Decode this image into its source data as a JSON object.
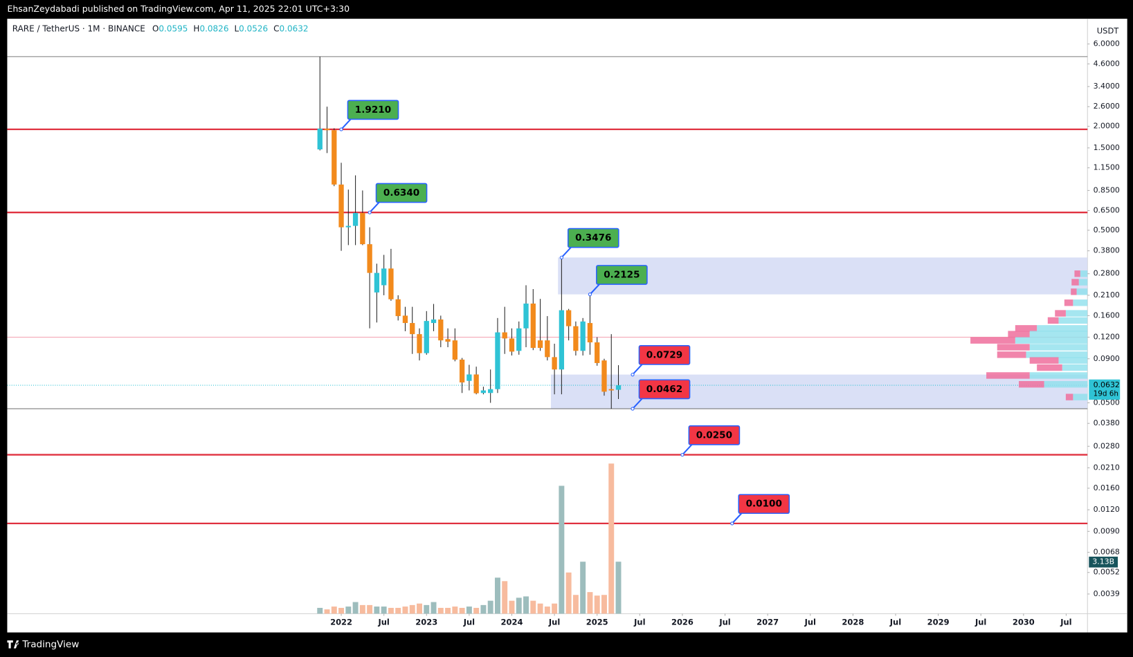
{
  "header": {
    "publisher": "EhsanZeydabadi published on TradingView.com, Apr 11, 2025 22:01 UTC+3:30"
  },
  "legend": {
    "symbol": "RARE / TetherUS · 1M · BINANCE",
    "o": "O",
    "h": "H",
    "l": "L",
    "c": "C"
  },
  "footer": {
    "brand": "TradingView"
  },
  "chart_data": {
    "type": "candlestick",
    "y_unit": "USDT",
    "log_scale": true,
    "x": [
      "2021-10",
      "2021-11",
      "2021-12",
      "2022-01",
      "2022-02",
      "2022-03",
      "2022-04",
      "2022-05",
      "2022-06",
      "2022-07",
      "2022-08",
      "2022-09",
      "2022-10",
      "2022-11",
      "2022-12",
      "2023-01",
      "2023-02",
      "2023-03",
      "2023-04",
      "2023-05",
      "2023-06",
      "2023-07",
      "2023-08",
      "2023-09",
      "2023-10",
      "2023-11",
      "2023-12",
      "2024-01",
      "2024-02",
      "2024-03",
      "2024-04",
      "2024-05",
      "2024-06",
      "2024-07",
      "2024-08",
      "2024-09",
      "2024-10",
      "2024-11",
      "2024-12",
      "2025-01",
      "2025-02",
      "2025-03",
      "2025-04"
    ],
    "open": [
      1.47,
      1.94,
      1.9,
      0.92,
      0.52,
      0.53,
      0.63,
      0.415,
      0.218,
      0.24,
      0.3,
      0.199,
      0.16,
      0.145,
      0.125,
      0.097,
      0.145,
      0.152,
      0.117,
      0.115,
      0.089,
      0.067,
      0.073,
      0.057,
      0.057,
      0.06,
      0.128,
      0.118,
      0.1,
      0.135,
      0.188,
      0.115,
      0.115,
      0.092,
      0.078,
      0.172,
      0.139,
      0.1,
      0.145,
      0.112,
      0.088,
      0.06,
      0.0595
    ],
    "high": [
      5.07,
      2.6,
      1.95,
      1.23,
      0.86,
      1.04,
      0.85,
      0.52,
      0.32,
      0.36,
      0.39,
      0.21,
      0.18,
      0.18,
      0.135,
      0.17,
      0.187,
      0.16,
      0.135,
      0.135,
      0.091,
      0.083,
      0.081,
      0.062,
      0.078,
      0.155,
      0.18,
      0.135,
      0.148,
      0.24,
      0.228,
      0.2,
      0.159,
      0.11,
      0.3476,
      0.175,
      0.148,
      0.155,
      0.2125,
      0.12,
      0.09,
      0.125,
      0.0826
    ],
    "low": [
      1.45,
      1.4,
      0.9,
      0.38,
      0.41,
      0.41,
      0.41,
      0.135,
      0.146,
      0.21,
      0.195,
      0.15,
      0.13,
      0.096,
      0.088,
      0.095,
      0.13,
      0.105,
      0.105,
      0.087,
      0.057,
      0.059,
      0.056,
      0.056,
      0.05,
      0.057,
      0.096,
      0.094,
      0.095,
      0.105,
      0.101,
      0.1,
      0.088,
      0.056,
      0.056,
      0.115,
      0.094,
      0.094,
      0.095,
      0.082,
      0.055,
      0.0462,
      0.0526
    ],
    "close": [
      1.94,
      1.9,
      0.92,
      0.52,
      0.53,
      0.63,
      0.415,
      0.283,
      0.283,
      0.3,
      0.199,
      0.159,
      0.145,
      0.125,
      0.097,
      0.149,
      0.152,
      0.115,
      0.113,
      0.089,
      0.0656,
      0.073,
      0.0568,
      0.059,
      0.06,
      0.128,
      0.118,
      0.099,
      0.135,
      0.188,
      0.104,
      0.104,
      0.092,
      0.078,
      0.172,
      0.139,
      0.1,
      0.148,
      0.112,
      0.085,
      0.058,
      0.059,
      0.0632
    ],
    "volume": [
      0.35,
      0.26,
      0.43,
      0.35,
      0.43,
      0.7,
      0.52,
      0.52,
      0.43,
      0.43,
      0.35,
      0.35,
      0.43,
      0.52,
      0.61,
      0.52,
      0.7,
      0.35,
      0.35,
      0.43,
      0.35,
      0.43,
      0.35,
      0.52,
      0.78,
      2.17,
      1.96,
      0.78,
      0.96,
      1.04,
      0.78,
      0.61,
      0.43,
      0.61,
      7.7,
      2.48,
      1.13,
      3.13,
      1.3,
      1.09,
      1.13,
      9.04,
      3.13
    ],
    "volume_label": {
      "value": 3.13,
      "label": "3.13B"
    },
    "countdown": "19d 6h",
    "up_color": "#2fc3d5",
    "down_color": "#f28a1c",
    "volume_up_color": "#9dbdbd",
    "volume_down_color": "#f7bb9e",
    "ylim": [
      0.003,
      8.4
    ],
    "yticks": [
      {
        "value": 6,
        "label": "6.0000"
      },
      {
        "value": 4.6,
        "label": "4.6000"
      },
      {
        "value": 3.4,
        "label": "3.4000"
      },
      {
        "value": 2.6,
        "label": "2.6000"
      },
      {
        "value": 2,
        "label": "2.0000"
      },
      {
        "value": 1.5,
        "label": "1.5000"
      },
      {
        "value": 1.15,
        "label": "1.1500"
      },
      {
        "value": 0.85,
        "label": "0.8500"
      },
      {
        "value": 0.65,
        "label": "0.6500"
      },
      {
        "value": 0.5,
        "label": "0.5000"
      },
      {
        "value": 0.38,
        "label": "0.3800"
      },
      {
        "value": 0.28,
        "label": "0.2800"
      },
      {
        "value": 0.21,
        "label": "0.2100"
      },
      {
        "value": 0.16,
        "label": "0.1600"
      },
      {
        "value": 0.12,
        "label": "0.1200"
      },
      {
        "value": 0.09,
        "label": "0.0900"
      },
      {
        "value": 0.05,
        "label": "0.0500"
      },
      {
        "value": 0.038,
        "label": "0.0380"
      },
      {
        "value": 0.028,
        "label": "0.0280"
      },
      {
        "value": 0.021,
        "label": "0.0210"
      },
      {
        "value": 0.016,
        "label": "0.0160"
      },
      {
        "value": 0.012,
        "label": "0.0120"
      },
      {
        "value": 0.009,
        "label": "0.0090"
      },
      {
        "value": 0.0068,
        "label": "0.0068"
      },
      {
        "value": 0.0052,
        "label": "0.0052"
      },
      {
        "value": 0.0039,
        "label": "0.0039"
      }
    ],
    "xlim": [
      "2018-02",
      "2030-10"
    ],
    "xticks": [
      {
        "value": "2022-01",
        "label": "2022"
      },
      {
        "value": "2022-07",
        "label": "Jul"
      },
      {
        "value": "2023-01",
        "label": "2023"
      },
      {
        "value": "2023-07",
        "label": "Jul"
      },
      {
        "value": "2024-01",
        "label": "2024"
      },
      {
        "value": "2024-07",
        "label": "Jul"
      },
      {
        "value": "2025-01",
        "label": "2025"
      },
      {
        "value": "2025-07",
        "label": "Jul"
      },
      {
        "value": "2026-01",
        "label": "2026"
      },
      {
        "value": "2026-07",
        "label": "Jul"
      },
      {
        "value": "2027-01",
        "label": "2027"
      },
      {
        "value": "2027-07",
        "label": "Jul"
      },
      {
        "value": "2028-01",
        "label": "2028"
      },
      {
        "value": "2028-07",
        "label": "Jul"
      },
      {
        "value": "2029-01",
        "label": "2029"
      },
      {
        "value": "2029-07",
        "label": "Jul"
      },
      {
        "value": "2030-01",
        "label": "2030"
      },
      {
        "value": "2030-07",
        "label": "Jul"
      }
    ],
    "levels": [
      {
        "value": 5.07,
        "color": "#7a7a7a"
      },
      {
        "value": 1.921,
        "color": "#e0303f"
      },
      {
        "value": 0.634,
        "color": "#e0303f"
      },
      {
        "value": 0.12,
        "color": "#f4a7b6"
      },
      {
        "value": 0.0462,
        "color": "#6b6b6b"
      },
      {
        "value": 0.025,
        "color": "#e0303f"
      },
      {
        "value": 0.01,
        "color": "#e0303f"
      }
    ],
    "zones": [
      {
        "from": "2024-08",
        "low": 0.2125,
        "high": 0.3476,
        "color": "#d3dbf4"
      },
      {
        "from": "2024-07",
        "low": 0.0462,
        "high": 0.0729,
        "color": "#d3dbf4"
      }
    ],
    "annotations": [
      {
        "x": "2022-01",
        "value": 1.921,
        "label": "1.9210",
        "color": "#4caf50"
      },
      {
        "x": "2022-05",
        "value": 0.634,
        "label": "0.6340",
        "color": "#4caf50"
      },
      {
        "x": "2024-08",
        "value": 0.3476,
        "label": "0.3476",
        "color": "#4caf50"
      },
      {
        "x": "2024-12",
        "value": 0.2125,
        "label": "0.2125",
        "color": "#4caf50"
      },
      {
        "x": "2025-06",
        "value": 0.0729,
        "label": "0.0729",
        "color": "#f23645"
      },
      {
        "x": "2025-06",
        "value": 0.0462,
        "label": "0.0462",
        "color": "#f23645"
      },
      {
        "x": "2026-01",
        "value": 0.025,
        "label": "0.0250",
        "color": "#f23645"
      },
      {
        "x": "2026-08",
        "value": 0.01,
        "label": "0.0100",
        "color": "#f23645"
      }
    ],
    "volume_profile": {
      "prices": [
        0.28,
        0.25,
        0.22,
        0.19,
        0.165,
        0.15,
        0.135,
        0.125,
        0.115,
        0.105,
        0.095,
        0.088,
        0.08,
        0.072,
        0.064,
        0.054
      ],
      "up": [
        10,
        12,
        15,
        20,
        30,
        40,
        70,
        80,
        100,
        80,
        85,
        40,
        35,
        80,
        60,
        20
      ],
      "down": [
        8,
        10,
        8,
        12,
        15,
        15,
        30,
        30,
        62,
        45,
        40,
        40,
        35,
        60,
        35,
        10
      ],
      "up_color": "#8fe0ec",
      "down_color": "#ee6f9c"
    }
  }
}
